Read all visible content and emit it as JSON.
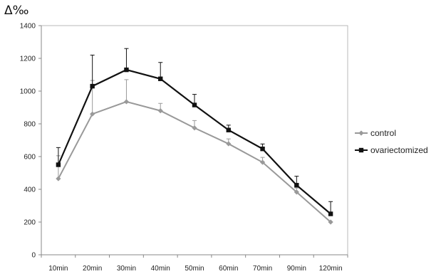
{
  "chart_data": {
    "type": "line",
    "title": "",
    "xlabel": "",
    "ylabel": "Δ‰",
    "categories": [
      "10min",
      "20min",
      "30min",
      "40min",
      "50min",
      "60min",
      "70min",
      "90min",
      "120min"
    ],
    "ylim": [
      0,
      1400
    ],
    "yticks": [
      0,
      200,
      400,
      600,
      800,
      1000,
      1200,
      1400
    ],
    "grid": false,
    "legend_position": "right",
    "series": [
      {
        "name": "control",
        "color": "#999999",
        "marker": "diamond",
        "values": [
          465,
          860,
          935,
          880,
          775,
          678,
          565,
          383,
          200
        ],
        "errors": [
          140,
          205,
          135,
          45,
          45,
          30,
          30,
          25,
          0
        ]
      },
      {
        "name": "ovariectomized",
        "color": "#111111",
        "marker": "square",
        "values": [
          550,
          1030,
          1130,
          1075,
          915,
          762,
          647,
          425,
          250
        ],
        "errors": [
          105,
          190,
          130,
          100,
          65,
          30,
          30,
          55,
          75
        ]
      }
    ]
  }
}
